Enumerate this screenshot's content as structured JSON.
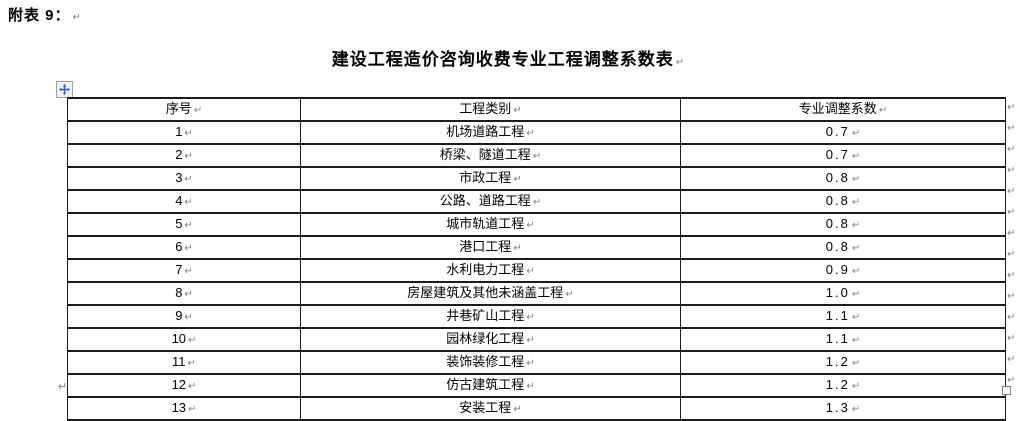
{
  "document": {
    "label": "附表 9：",
    "title": "建设工程造价咨询收费专业工程调整系数表"
  },
  "formatting_marks": {
    "return_mark": "↵"
  },
  "table": {
    "headers": [
      "序号",
      "工程类别",
      "专业调整系数"
    ],
    "rows": [
      [
        "1",
        "机场道路工程",
        "0.7"
      ],
      [
        "2",
        "桥梁、隧道工程",
        "0.7"
      ],
      [
        "3",
        "市政工程",
        "0.8"
      ],
      [
        "4",
        "公路、道路工程",
        "0.8"
      ],
      [
        "5",
        "城市轨道工程",
        "0.8"
      ],
      [
        "6",
        "港口工程",
        "0.8"
      ],
      [
        "7",
        "水利电力工程",
        "0.9"
      ],
      [
        "8",
        "房屋建筑及其他未涵盖工程",
        "1.0"
      ],
      [
        "9",
        "井巷矿山工程",
        "1.1"
      ],
      [
        "10",
        "园林绿化工程",
        "1.1"
      ],
      [
        "11",
        "装饰装修工程",
        "1.2"
      ],
      [
        "12",
        "仿古建筑工程",
        "1.2"
      ],
      [
        "13",
        "安装工程",
        "1.3"
      ]
    ]
  },
  "icons": {
    "table_move_handle": "move-cross-icon"
  },
  "colors": {
    "move_handle_blue": "#2e5cc5",
    "table_border": "#1c1c1c",
    "mark_gray": "#808080"
  }
}
